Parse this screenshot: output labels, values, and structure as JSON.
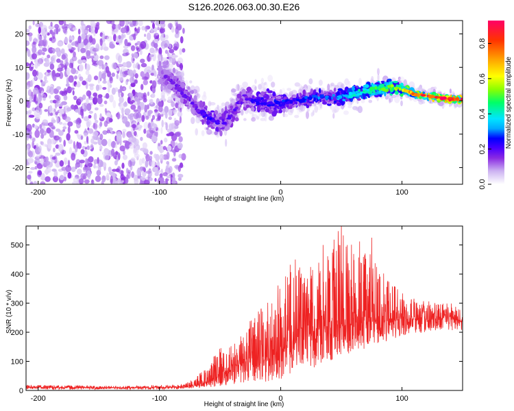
{
  "chart_data": [
    {
      "type": "heatmap",
      "title": "S126.2026.063.00.30.E26",
      "xlabel": "Height of straight line (km)",
      "ylabel": "Frequency (Hz)",
      "xlim": [
        -210,
        150
      ],
      "ylim": [
        -25,
        24
      ],
      "xticks": [
        -200,
        -100,
        0,
        100
      ],
      "yticks": [
        -20,
        -10,
        0,
        10,
        20
      ],
      "colorbar": {
        "label": "Normalized spectral amplitude",
        "range": [
          0,
          0.93
        ],
        "ticks": [
          "0.0",
          "0.2",
          "0.4",
          "0.6",
          "0.8"
        ],
        "colormap": [
          "#ffffff",
          "#cdb4f2",
          "#8a2be2",
          "#4b00ff",
          "#0000ff",
          "#00aaff",
          "#00e5ff",
          "#00ff66",
          "#8cff00",
          "#ffff00",
          "#ffa500",
          "#ff3300",
          "#ff0066"
        ]
      },
      "ridge": {
        "x": [
          -100,
          -90,
          -80,
          -70,
          -60,
          -50,
          -40,
          -30,
          -20,
          -10,
          0,
          10,
          20,
          30,
          40,
          50,
          60,
          70,
          80,
          90,
          100,
          110,
          120,
          130,
          140,
          150
        ],
        "frequency": [
          9,
          6,
          2,
          -2,
          -5,
          -7,
          -4,
          1,
          0,
          -0.5,
          -0.5,
          0,
          0.5,
          1,
          1,
          1,
          2,
          3,
          3.5,
          4,
          3.5,
          2,
          1.5,
          1,
          0.5,
          0.3
        ],
        "peak_amplitude": [
          0.15,
          0.18,
          0.2,
          0.18,
          0.25,
          0.22,
          0.2,
          0.18,
          0.25,
          0.25,
          0.28,
          0.25,
          0.28,
          0.3,
          0.3,
          0.35,
          0.4,
          0.45,
          0.5,
          0.55,
          0.6,
          0.8,
          0.85,
          0.9,
          0.92,
          0.9
        ]
      }
    },
    {
      "type": "line",
      "xlabel": "Height of straight line (km)",
      "ylabel": "SNR (10 * v/v)",
      "xlim": [
        -210,
        150
      ],
      "ylim": [
        0,
        565
      ],
      "xticks": [
        -200,
        -100,
        0,
        100
      ],
      "yticks": [
        0,
        100,
        200,
        300,
        400,
        500
      ],
      "color": "#ee2222",
      "series": [
        {
          "name": "SNR",
          "x": [
            -210,
            -190,
            -170,
            -150,
            -130,
            -110,
            -90,
            -80,
            -70,
            -60,
            -50,
            -40,
            -30,
            -20,
            -10,
            0,
            10,
            20,
            30,
            40,
            50,
            60,
            70,
            80,
            90,
            100,
            110,
            120,
            130,
            140,
            150
          ],
          "mean": [
            12,
            10,
            10,
            9,
            9,
            10,
            11,
            12,
            18,
            30,
            55,
            80,
            95,
            110,
            120,
            140,
            170,
            190,
            200,
            215,
            225,
            230,
            235,
            240,
            245,
            245,
            245,
            245,
            245,
            245,
            240
          ],
          "upper": [
            20,
            18,
            17,
            16,
            16,
            18,
            20,
            22,
            45,
            90,
            150,
            170,
            210,
            270,
            310,
            380,
            450,
            420,
            440,
            500,
            565,
            520,
            525,
            420,
            390,
            350,
            320,
            310,
            300,
            300,
            290
          ],
          "lower": [
            4,
            3,
            3,
            3,
            3,
            3,
            4,
            5,
            8,
            10,
            15,
            20,
            25,
            30,
            30,
            40,
            50,
            60,
            80,
            100,
            120,
            130,
            140,
            160,
            170,
            180,
            190,
            195,
            200,
            200,
            200
          ],
          "peaks": [
            {
              "x": 12,
              "y": 450
            },
            {
              "x": 35,
              "y": 500
            },
            {
              "x": 50,
              "y": 565
            },
            {
              "x": 55,
              "y": 500
            },
            {
              "x": 75,
              "y": 525
            },
            {
              "x": 46,
              "y": 480
            }
          ]
        }
      ]
    }
  ]
}
